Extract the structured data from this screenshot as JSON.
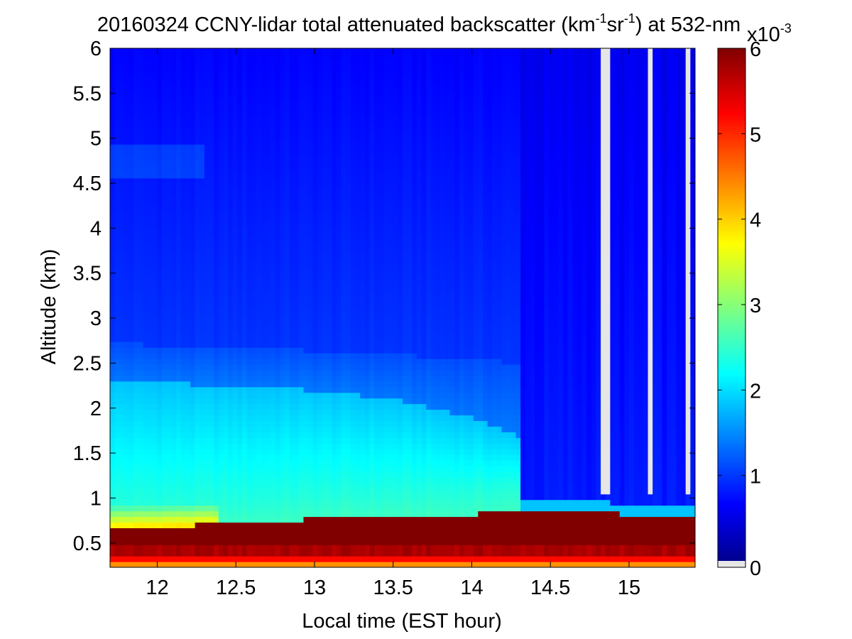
{
  "chart_data": {
    "type": "heatmap",
    "title": {
      "prefix": "20160324 CCNY-lidar total attenuated backscatter (km",
      "sup1": "-1",
      "mid": "sr",
      "sup2": "-1",
      "suffix": ") at 532-nm"
    },
    "xlabel": "Local time (EST hour)",
    "ylabel": "Altitude (km)",
    "xlim": [
      11.7,
      15.42
    ],
    "ylim": [
      0.23,
      6.0
    ],
    "x_ticks": [
      {
        "value": 12,
        "label": "12"
      },
      {
        "value": 12.5,
        "label": "12.5"
      },
      {
        "value": 13,
        "label": "13"
      },
      {
        "value": 13.5,
        "label": "13.5"
      },
      {
        "value": 14,
        "label": "14"
      },
      {
        "value": 14.5,
        "label": "14.5"
      },
      {
        "value": 15,
        "label": "15"
      }
    ],
    "y_ticks": [
      {
        "value": 0.5,
        "label": "0.5"
      },
      {
        "value": 1,
        "label": "1"
      },
      {
        "value": 1.5,
        "label": "1.5"
      },
      {
        "value": 2,
        "label": "2"
      },
      {
        "value": 2.5,
        "label": "2.5"
      },
      {
        "value": 3,
        "label": "3"
      },
      {
        "value": 3.5,
        "label": "3.5"
      },
      {
        "value": 4,
        "label": "4"
      },
      {
        "value": 4.5,
        "label": "4.5"
      },
      {
        "value": 5,
        "label": "5"
      },
      {
        "value": 5.5,
        "label": "5.5"
      },
      {
        "value": 6,
        "label": "6"
      }
    ],
    "colorbar": {
      "colormap": "jet",
      "range": [
        0,
        6
      ],
      "multiplier": {
        "base": "x10",
        "exponent": "-3"
      },
      "no_data_color": "#e6e6e6",
      "ticks": [
        {
          "value": 0,
          "label": "0"
        },
        {
          "value": 1,
          "label": "1"
        },
        {
          "value": 2,
          "label": "2"
        },
        {
          "value": 3,
          "label": "3"
        },
        {
          "value": 4,
          "label": "4"
        },
        {
          "value": 5,
          "label": "5"
        },
        {
          "value": 6,
          "label": "6"
        }
      ]
    },
    "layers": {
      "boundary_layer_top_km": [
        [
          11.7,
          0.68
        ],
        [
          12.5,
          0.71
        ],
        [
          13.0,
          0.77
        ],
        [
          13.5,
          0.8
        ],
        [
          14.0,
          0.82
        ],
        [
          14.3,
          0.86
        ],
        [
          14.8,
          0.84
        ],
        [
          15.0,
          0.82
        ],
        [
          15.42,
          0.8
        ]
      ],
      "aerosol_layer_top_km": [
        [
          11.7,
          2.3
        ],
        [
          12.5,
          2.25
        ],
        [
          13.0,
          2.2
        ],
        [
          13.5,
          2.1
        ],
        [
          14.0,
          1.9
        ],
        [
          14.3,
          1.7
        ]
      ],
      "upper_layer_top_km": [
        [
          11.7,
          2.72
        ],
        [
          13.0,
          2.64
        ],
        [
          14.0,
          2.55
        ],
        [
          14.3,
          2.5
        ]
      ],
      "no_data_columns_hours": [
        [
          14.83,
          14.88
        ],
        [
          15.12,
          15.14
        ],
        [
          15.36,
          15.39
        ]
      ]
    }
  }
}
